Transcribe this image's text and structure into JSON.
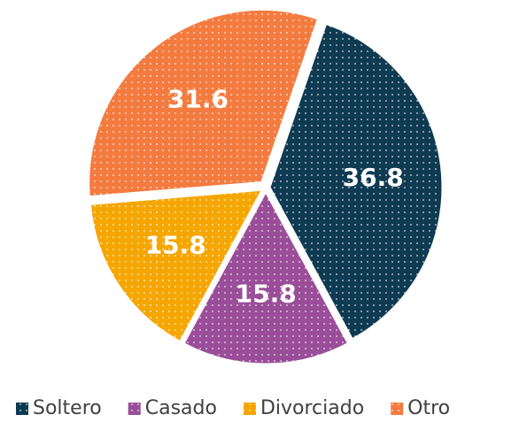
{
  "chart_data": {
    "type": "pie",
    "categories": [
      "Soltero",
      "Casado",
      "Divorciado",
      "Otro"
    ],
    "values": [
      36.8,
      15.8,
      15.8,
      31.6
    ],
    "colors": [
      "#0e3a52",
      "#9a4d98",
      "#f5a600",
      "#f47b3f"
    ],
    "legend": "bottom"
  }
}
